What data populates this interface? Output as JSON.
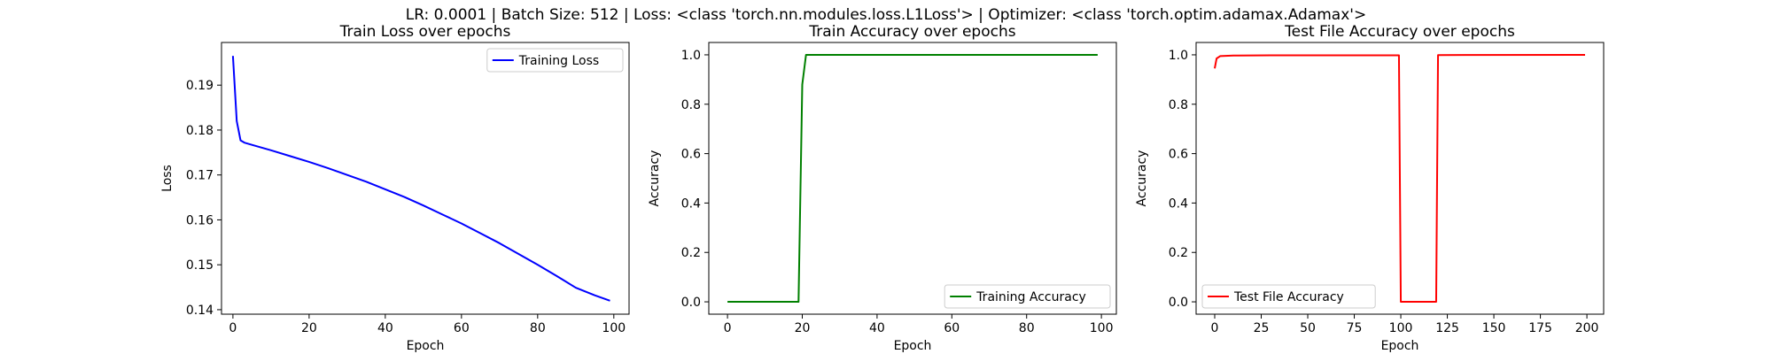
{
  "figure": {
    "suptitle": "LR: 0.0001 | Batch Size: 512 | Loss: <class 'torch.nn.modules.loss.L1Loss'> | Optimizer: <class 'torch.optim.adamax.Adamax'>"
  },
  "chart_data": [
    {
      "type": "line",
      "title": "Train Loss over epochs",
      "xlabel": "Epoch",
      "ylabel": "Loss",
      "xlim": [
        -3,
        104
      ],
      "ylim": [
        0.139,
        0.1995
      ],
      "xticks": [
        0,
        20,
        40,
        60,
        80,
        100
      ],
      "yticks": [
        0.14,
        0.15,
        0.16,
        0.17,
        0.18,
        0.19
      ],
      "ytick_decimals": 2,
      "grid": false,
      "legend_position": "top-right",
      "series": [
        {
          "name": "Training Loss",
          "color": "#0000ff",
          "points": [
            [
              0,
              0.1965
            ],
            [
              1,
              0.182
            ],
            [
              2,
              0.1777
            ],
            [
              3,
              0.1772
            ],
            [
              5,
              0.1767
            ],
            [
              10,
              0.1755
            ],
            [
              15,
              0.1742
            ],
            [
              20,
              0.1729
            ],
            [
              25,
              0.1715
            ],
            [
              30,
              0.17
            ],
            [
              35,
              0.1685
            ],
            [
              40,
              0.1668
            ],
            [
              45,
              0.1651
            ],
            [
              50,
              0.1632
            ],
            [
              55,
              0.1612
            ],
            [
              60,
              0.1592
            ],
            [
              65,
              0.157
            ],
            [
              70,
              0.1548
            ],
            [
              75,
              0.1524
            ],
            [
              80,
              0.15
            ],
            [
              85,
              0.1475
            ],
            [
              90,
              0.1449
            ],
            [
              95,
              0.1432
            ],
            [
              99,
              0.142
            ]
          ]
        }
      ]
    },
    {
      "type": "line",
      "title": "Train Accuracy over epochs",
      "xlabel": "Epoch",
      "ylabel": "Accuracy",
      "xlim": [
        -5,
        104
      ],
      "ylim": [
        -0.05,
        1.05
      ],
      "xticks": [
        0,
        20,
        40,
        60,
        80,
        100
      ],
      "yticks": [
        0.0,
        0.2,
        0.4,
        0.6,
        0.8,
        1.0
      ],
      "ytick_decimals": 1,
      "grid": false,
      "legend_position": "bottom-right",
      "series": [
        {
          "name": "Training Accuracy",
          "color": "#008000",
          "points": [
            [
              0,
              0.0
            ],
            [
              19,
              0.0
            ],
            [
              20,
              0.88
            ],
            [
              21,
              1.0
            ],
            [
              99,
              1.0
            ]
          ]
        }
      ]
    },
    {
      "type": "line",
      "title": "Test File Accuracy over epochs",
      "xlabel": "Epoch",
      "ylabel": "Accuracy",
      "xlim": [
        -10,
        209
      ],
      "ylim": [
        -0.05,
        1.05
      ],
      "xticks": [
        0,
        25,
        50,
        75,
        100,
        125,
        150,
        175,
        200
      ],
      "yticks": [
        0.0,
        0.2,
        0.4,
        0.6,
        0.8,
        1.0
      ],
      "ytick_decimals": 1,
      "grid": false,
      "legend_position": "bottom-left",
      "series": [
        {
          "name": "Test File Accuracy",
          "color": "#ff0000",
          "points": [
            [
              0,
              0.945
            ],
            [
              1,
              0.985
            ],
            [
              3,
              0.995
            ],
            [
              10,
              0.997
            ],
            [
              30,
              0.998
            ],
            [
              99,
              0.998
            ],
            [
              100,
              0.0
            ],
            [
              119,
              0.0
            ],
            [
              120,
              0.999
            ],
            [
              199,
              1.0
            ]
          ]
        }
      ]
    }
  ]
}
